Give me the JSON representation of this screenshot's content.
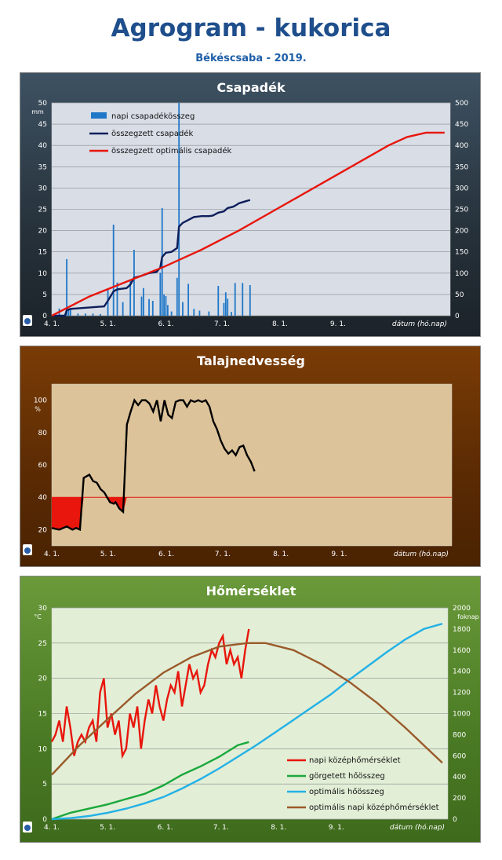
{
  "header": {
    "title": "Agrogram - kukorica",
    "subtitle": "Békéscsaba - 2019."
  },
  "chart_data": [
    {
      "type": "bar",
      "title": "Csapadék",
      "ylabel": "mm",
      "y2label": "",
      "xlabel": "dátum (hó.nap)",
      "x_ticks": [
        "4. 1.",
        "5. 1.",
        "6. 1.",
        "7. 1.",
        "8. 1.",
        "9. 1."
      ],
      "ylim": [
        0,
        50
      ],
      "y2lim": [
        0,
        500
      ],
      "y_ticks": [
        0,
        5,
        10,
        15,
        20,
        25,
        30,
        35,
        40,
        45,
        50
      ],
      "y2_ticks": [
        0,
        50,
        100,
        150,
        200,
        250,
        300,
        350,
        400,
        450,
        500
      ],
      "grid": true,
      "legend": "top-left",
      "series": [
        {
          "name": "napi csapadékösszeg",
          "type": "bar",
          "axis": "left",
          "color": "#1f77c8",
          "x": [
            4,
            8,
            9,
            10,
            14,
            18,
            22,
            26,
            30,
            33,
            35,
            38,
            42,
            44,
            48,
            49,
            52,
            54,
            58,
            59,
            60,
            61,
            62,
            64,
            67,
            68,
            70,
            73,
            76,
            79,
            84,
            89,
            92,
            93,
            94,
            96,
            98,
            102,
            106
          ],
          "values": [
            1.7,
            13.3,
            1.5,
            1.5,
            0.5,
            0.5,
            0.5,
            0.4,
            6.1,
            21.4,
            7.8,
            3.2,
            8.1,
            15.5,
            4.5,
            6.5,
            3.9,
            3.5,
            10.1,
            25.3,
            5.0,
            4.6,
            2.5,
            1.0,
            8.9,
            50.0,
            3.2,
            7.5,
            1.6,
            1.2,
            1.0,
            7.0,
            3.0,
            5.5,
            4.0,
            0.9,
            7.7,
            7.7,
            7.2
          ]
        },
        {
          "name": "összegzett csapadék",
          "type": "line",
          "axis": "right",
          "color": "#0d1e5a",
          "x": [
            0,
            7,
            8,
            10,
            28,
            30,
            33,
            35,
            40,
            42,
            44,
            48,
            52,
            56,
            58,
            59,
            61,
            64,
            67,
            68,
            70,
            73,
            76,
            80,
            84,
            86,
            89,
            92,
            94,
            97,
            99,
            100,
            103,
            106
          ],
          "values": [
            0,
            0,
            13,
            16,
            22,
            35,
            57,
            62,
            65,
            73,
            89,
            94,
            100,
            103,
            113,
            138,
            148,
            150,
            159,
            209,
            218,
            225,
            232,
            234,
            234,
            235,
            242,
            245,
            253,
            256,
            261,
            264,
            268,
            272
          ]
        },
        {
          "name": "összegzett optimális csapadék",
          "type": "line",
          "axis": "right",
          "color": "#e8160c",
          "x": [
            0,
            20,
            40,
            60,
            80,
            100,
            120,
            140,
            160,
            180,
            190,
            200,
            210
          ],
          "values": [
            0,
            45,
            80,
            115,
            155,
            200,
            250,
            300,
            350,
            400,
            420,
            430,
            430
          ]
        }
      ]
    },
    {
      "type": "line",
      "title": "Talajnedvesség",
      "ylabel": "%",
      "xlabel": "dátum (hó.nap)",
      "x_ticks": [
        "4. 1.",
        "5. 1.",
        "6. 1.",
        "7. 1.",
        "8. 1.",
        "9. 1."
      ],
      "ylim": [
        10,
        110
      ],
      "y_ticks": [
        20,
        40,
        60,
        80,
        100
      ],
      "grid": false,
      "threshold": 40,
      "series": [
        {
          "name": "",
          "color": "#000000",
          "x": [
            0,
            4,
            8,
            11,
            13,
            15,
            17,
            20,
            22,
            24,
            26,
            28,
            30,
            31,
            33,
            34,
            36,
            38,
            40,
            42,
            44,
            46,
            48,
            50,
            52,
            54,
            56,
            58,
            60,
            62,
            64,
            66,
            68,
            70,
            72,
            74,
            76,
            78,
            80,
            82,
            84,
            86,
            88,
            90,
            92,
            94,
            96,
            98,
            100,
            102,
            104,
            106,
            108
          ],
          "values": [
            21,
            20,
            22,
            20,
            21,
            20,
            52,
            54,
            50,
            49,
            45,
            43,
            39,
            37,
            36,
            37,
            33,
            31,
            85,
            93,
            100,
            97,
            100,
            100,
            98,
            93,
            100,
            87,
            100,
            91,
            89,
            99,
            100,
            100,
            96,
            100,
            99,
            100,
            99,
            100,
            96,
            87,
            82,
            75,
            70,
            67,
            69,
            66,
            71,
            72,
            66,
            62,
            56
          ]
        }
      ]
    },
    {
      "type": "line",
      "title": "Hőmérséklet",
      "ylabel": "°C",
      "y2label": "foknap",
      "xlabel": "dátum (hó.nap)",
      "x_ticks": [
        "4. 1.",
        "5. 1.",
        "6. 1.",
        "7. 1.",
        "8. 1.",
        "9. 1."
      ],
      "ylim": [
        0,
        30
      ],
      "y2lim": [
        0,
        2000
      ],
      "y_ticks": [
        0,
        5,
        10,
        15,
        20,
        25,
        30
      ],
      "y2_ticks": [
        0,
        200,
        400,
        600,
        800,
        1000,
        1200,
        1400,
        1600,
        1800,
        2000
      ],
      "grid": true,
      "legend": "bottom-right",
      "series": [
        {
          "name": "napi középhőmérséklet",
          "axis": "left",
          "color": "#e8160c",
          "x": [
            0,
            2,
            4,
            6,
            8,
            10,
            12,
            14,
            16,
            18,
            20,
            22,
            24,
            26,
            28,
            30,
            32,
            34,
            36,
            38,
            40,
            42,
            44,
            46,
            48,
            50,
            52,
            54,
            56,
            58,
            60,
            62,
            64,
            66,
            68,
            70,
            72,
            74,
            76,
            78,
            80,
            82,
            84,
            86,
            88,
            90,
            92,
            94,
            96,
            98,
            100,
            102,
            104,
            106
          ],
          "values": [
            11,
            12,
            14,
            11,
            16,
            13,
            9,
            11,
            12,
            11,
            13,
            14,
            11,
            18,
            20,
            13,
            15,
            12,
            14,
            9,
            10,
            15,
            13,
            16,
            10,
            14,
            17,
            15,
            19,
            16,
            14,
            17,
            19,
            18,
            21,
            16,
            19,
            22,
            20,
            21,
            18,
            19,
            22,
            24,
            23,
            25,
            26,
            22,
            24,
            22,
            23,
            20,
            24,
            27
          ]
        },
        {
          "name": "görgetett hőösszeg",
          "axis": "right",
          "color": "#1aa83c",
          "x": [
            0,
            10,
            20,
            30,
            40,
            50,
            60,
            70,
            80,
            90,
            100,
            106
          ],
          "values": [
            0,
            60,
            100,
            140,
            190,
            240,
            320,
            420,
            500,
            590,
            700,
            730
          ]
        },
        {
          "name": "optimális hőösszeg",
          "axis": "right",
          "color": "#23b1e6",
          "x": [
            0,
            10,
            20,
            30,
            40,
            50,
            60,
            70,
            80,
            90,
            100,
            110,
            120,
            130,
            140,
            150,
            160,
            170,
            180,
            190,
            200,
            210
          ],
          "values": [
            0,
            10,
            30,
            60,
            100,
            150,
            210,
            290,
            380,
            480,
            590,
            700,
            820,
            940,
            1060,
            1180,
            1320,
            1450,
            1580,
            1700,
            1800,
            1850
          ]
        },
        {
          "name": "optimális napi középhőmérséklet",
          "axis": "left",
          "color": "#9a5a2a",
          "x": [
            0,
            15,
            30,
            45,
            60,
            75,
            90,
            105,
            115,
            130,
            145,
            160,
            175,
            190,
            210
          ],
          "values": [
            6.3,
            10.5,
            14.2,
            17.8,
            20.8,
            23.0,
            24.5,
            25.0,
            25.0,
            24.0,
            22.0,
            19.5,
            16.5,
            13.0,
            8.0
          ]
        }
      ]
    }
  ]
}
